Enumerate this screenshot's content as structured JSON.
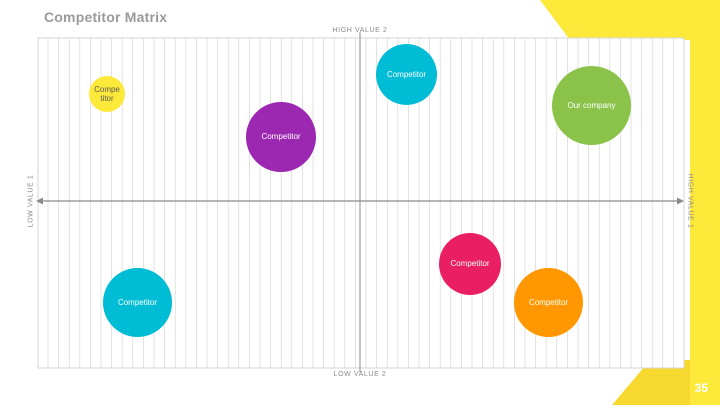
{
  "slide": {
    "title": "Competitor Matrix",
    "page_number": "35"
  },
  "axes": {
    "top": "HIGH VALUE 2",
    "bottom": "LOW VALUE 2",
    "left": "LOW VALUE 1",
    "right": "HIGH VALUE 1"
  },
  "bubbles": [
    {
      "label": "Compe\ntitor",
      "color": "#fde93a",
      "dark_text": true
    },
    {
      "label": "Competitor",
      "color": "#9c27b0"
    },
    {
      "label": "Competitor",
      "color": "#00bcd4"
    },
    {
      "label": "Our company",
      "color": "#8bc34a"
    },
    {
      "label": "Competitor",
      "color": "#e91e63"
    },
    {
      "label": "Competitor",
      "color": "#00bcd4"
    },
    {
      "label": "Competitor",
      "color": "#ff9800"
    }
  ],
  "colors": {
    "accent_yellow": "#fde93a",
    "accent_yellow_light": "#fff59d",
    "grid_line": "#d0d0d0",
    "axis_line": "#8a8a8a"
  }
}
